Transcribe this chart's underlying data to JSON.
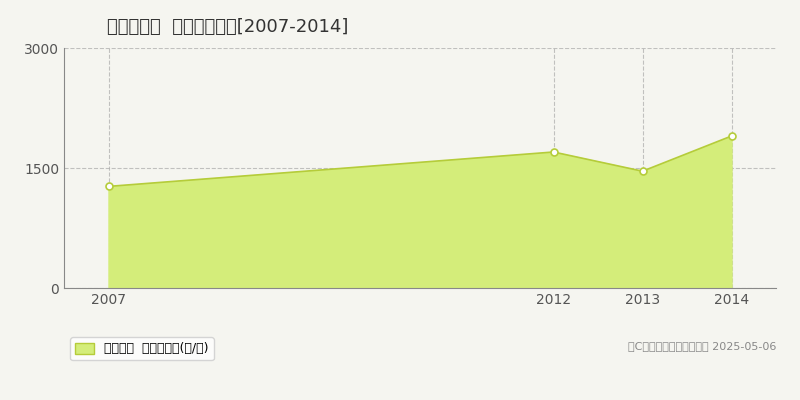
{
  "title": "東根市関山  林地価格推移[2007-2014]",
  "years": [
    2007,
    2012,
    2013,
    2014
  ],
  "values": [
    1270,
    1700,
    1460,
    1900
  ],
  "ylim": [
    0,
    3000
  ],
  "yticks": [
    0,
    1500,
    3000
  ],
  "xticks": [
    2007,
    2012,
    2013,
    2014
  ],
  "xlim": [
    2006.5,
    2014.5
  ],
  "fill_color": "#d4ed7a",
  "line_color": "#b5cc3a",
  "marker_color": "#ffffff",
  "marker_edge_color": "#b5cc3a",
  "background_color": "#f5f5f0",
  "grid_color": "#aaaaaa",
  "legend_label": "林地価格  平均坪単価(円/坪)",
  "copyright_text": "（C）土地価格ドットコム 2025-05-06",
  "title_fontsize": 13,
  "axis_fontsize": 10,
  "legend_fontsize": 9,
  "copyright_fontsize": 8
}
